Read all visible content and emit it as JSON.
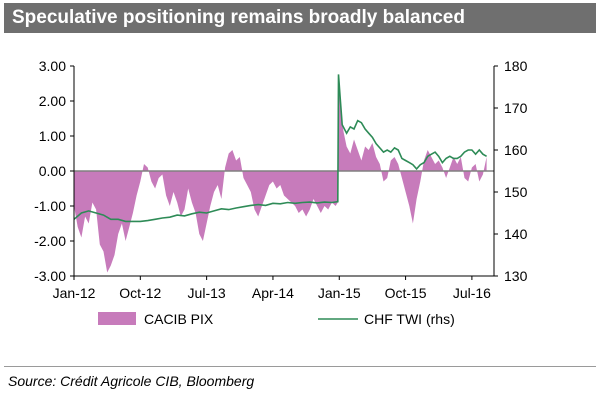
{
  "title": "Speculative positioning remains broadly balanced",
  "source": "Source: Crédit Agricole CIB, Bloomberg",
  "chart_data": {
    "type": "area",
    "title": "Speculative positioning remains broadly balanced",
    "xlabel": "",
    "ylabel": "",
    "y2label": "",
    "x_tick_labels": [
      "Jan-12",
      "Oct-12",
      "Jul-13",
      "Apr-14",
      "Jan-15",
      "Oct-15",
      "Jul-16"
    ],
    "x_tick_months": [
      0,
      9,
      18,
      27,
      36,
      45,
      54
    ],
    "x_range_months": [
      0,
      57
    ],
    "ylim_left": [
      -3.0,
      3.0
    ],
    "y_ticks_left": [
      -3.0,
      -2.0,
      -1.0,
      0.0,
      1.0,
      2.0,
      3.0
    ],
    "y_tick_labels_left": [
      "-3.00",
      "-2.00",
      "-1.00",
      "0.00",
      "1.00",
      "2.00",
      "3.00"
    ],
    "ylim_right": [
      130,
      180
    ],
    "y_ticks_right": [
      130,
      140,
      150,
      160,
      170,
      180
    ],
    "y_tick_labels_right": [
      "130",
      "140",
      "150",
      "160",
      "170",
      "180"
    ],
    "legend_position": "bottom",
    "grid": false,
    "colors": {
      "pix_fill": "#c77bbb",
      "twi_line": "#2e8b57",
      "zero_line": "#808080",
      "title_bg": "#6f6f6f"
    },
    "series": [
      {
        "name": "CACIB PIX",
        "axis": "left",
        "kind": "area",
        "points": [
          [
            0,
            -1.0
          ],
          [
            0.5,
            -1.6
          ],
          [
            1.0,
            -1.9
          ],
          [
            1.5,
            -1.3
          ],
          [
            2.0,
            -1.5
          ],
          [
            2.5,
            -0.9
          ],
          [
            3.0,
            -1.1
          ],
          [
            3.5,
            -2.1
          ],
          [
            4.0,
            -2.3
          ],
          [
            4.5,
            -2.9
          ],
          [
            5.0,
            -2.7
          ],
          [
            5.5,
            -2.4
          ],
          [
            6.0,
            -1.8
          ],
          [
            6.5,
            -1.5
          ],
          [
            7.0,
            -2.0
          ],
          [
            7.5,
            -1.6
          ],
          [
            8.0,
            -1.2
          ],
          [
            8.5,
            -0.7
          ],
          [
            9.0,
            -0.3
          ],
          [
            9.5,
            0.2
          ],
          [
            10.0,
            0.1
          ],
          [
            10.5,
            -0.3
          ],
          [
            11.0,
            -0.5
          ],
          [
            11.5,
            -0.2
          ],
          [
            12.0,
            -0.1
          ],
          [
            12.5,
            -0.7
          ],
          [
            13.0,
            -1.0
          ],
          [
            13.5,
            -0.6
          ],
          [
            14.0,
            -0.9
          ],
          [
            14.5,
            -1.3
          ],
          [
            15.0,
            -1.1
          ],
          [
            15.5,
            -0.5
          ],
          [
            16.0,
            -0.9
          ],
          [
            16.5,
            -1.2
          ],
          [
            17.0,
            -1.8
          ],
          [
            17.5,
            -2.0
          ],
          [
            18.0,
            -1.5
          ],
          [
            18.5,
            -1.0
          ],
          [
            19.0,
            -0.6
          ],
          [
            19.5,
            -0.4
          ],
          [
            20.0,
            -0.8
          ],
          [
            20.5,
            0.1
          ],
          [
            21.0,
            0.5
          ],
          [
            21.5,
            0.6
          ],
          [
            22.0,
            0.3
          ],
          [
            22.5,
            0.4
          ],
          [
            23.0,
            -0.2
          ],
          [
            23.5,
            -0.4
          ],
          [
            24.0,
            -0.6
          ],
          [
            24.5,
            -1.1
          ],
          [
            25.0,
            -1.3
          ],
          [
            25.5,
            -1.0
          ],
          [
            26.0,
            -0.7
          ],
          [
            26.5,
            -0.4
          ],
          [
            27.0,
            -0.3
          ],
          [
            27.5,
            -0.5
          ],
          [
            28.0,
            -0.4
          ],
          [
            28.5,
            -0.7
          ],
          [
            29.0,
            -0.8
          ],
          [
            29.5,
            -0.9
          ],
          [
            30.0,
            -1.0
          ],
          [
            30.5,
            -1.2
          ],
          [
            31.0,
            -1.1
          ],
          [
            31.5,
            -1.3
          ],
          [
            32.0,
            -1.1
          ],
          [
            32.5,
            -0.8
          ],
          [
            33.0,
            -1.0
          ],
          [
            33.5,
            -1.2
          ],
          [
            34.0,
            -1.0
          ],
          [
            34.5,
            -1.1
          ],
          [
            35.0,
            -0.9
          ],
          [
            35.5,
            -1.0
          ],
          [
            35.8,
            -0.9
          ],
          [
            35.9,
            2.7
          ],
          [
            36.0,
            2.5
          ],
          [
            36.3,
            1.5
          ],
          [
            36.6,
            1.1
          ],
          [
            37.0,
            0.7
          ],
          [
            37.5,
            0.5
          ],
          [
            38.0,
            0.9
          ],
          [
            38.5,
            0.6
          ],
          [
            39.0,
            0.3
          ],
          [
            39.5,
            0.7
          ],
          [
            40.0,
            0.6
          ],
          [
            40.5,
            0.8
          ],
          [
            41.0,
            0.4
          ],
          [
            41.5,
            0.2
          ],
          [
            42.0,
            -0.3
          ],
          [
            42.5,
            -0.2
          ],
          [
            43.0,
            0.3
          ],
          [
            43.5,
            0.4
          ],
          [
            44.0,
            0.2
          ],
          [
            44.5,
            -0.2
          ],
          [
            45.0,
            -0.6
          ],
          [
            45.5,
            -1.0
          ],
          [
            46.0,
            -1.5
          ],
          [
            46.5,
            -0.8
          ],
          [
            47.0,
            -0.3
          ],
          [
            47.5,
            0.3
          ],
          [
            48.0,
            0.6
          ],
          [
            48.5,
            0.4
          ],
          [
            49.0,
            0.2
          ],
          [
            49.5,
            0.3
          ],
          [
            50.0,
            0.1
          ],
          [
            50.5,
            -0.2
          ],
          [
            51.0,
            0.1
          ],
          [
            51.5,
            0.4
          ],
          [
            52.0,
            0.2
          ],
          [
            52.5,
            0.4
          ],
          [
            53.0,
            -0.2
          ],
          [
            53.5,
            -0.3
          ],
          [
            54.0,
            0.1
          ],
          [
            54.5,
            0.2
          ],
          [
            55.0,
            -0.3
          ],
          [
            55.5,
            -0.1
          ],
          [
            56.0,
            0.4
          ]
        ]
      },
      {
        "name": "CHF TWI (rhs)",
        "axis": "right",
        "kind": "line",
        "points": [
          [
            0,
            143.5
          ],
          [
            1.0,
            145.0
          ],
          [
            2.0,
            145.5
          ],
          [
            3.0,
            145.0
          ],
          [
            4.0,
            144.5
          ],
          [
            5.0,
            143.5
          ],
          [
            6.0,
            143.5
          ],
          [
            7.0,
            143.0
          ],
          [
            8.0,
            143.0
          ],
          [
            9.0,
            143.0
          ],
          [
            10.0,
            143.2
          ],
          [
            11.0,
            143.5
          ],
          [
            12.0,
            143.8
          ],
          [
            13.0,
            144.0
          ],
          [
            14.0,
            144.5
          ],
          [
            15.0,
            144.3
          ],
          [
            16.0,
            144.8
          ],
          [
            17.0,
            145.2
          ],
          [
            18.0,
            145.0
          ],
          [
            19.0,
            145.5
          ],
          [
            20.0,
            146.0
          ],
          [
            21.0,
            145.8
          ],
          [
            22.0,
            146.2
          ],
          [
            23.0,
            146.5
          ],
          [
            24.0,
            146.8
          ],
          [
            25.0,
            147.0
          ],
          [
            26.0,
            146.8
          ],
          [
            27.0,
            147.3
          ],
          [
            28.0,
            147.2
          ],
          [
            29.0,
            147.5
          ],
          [
            30.0,
            147.3
          ],
          [
            31.0,
            147.5
          ],
          [
            32.0,
            147.6
          ],
          [
            33.0,
            147.4
          ],
          [
            34.0,
            147.6
          ],
          [
            35.0,
            147.5
          ],
          [
            35.8,
            147.7
          ],
          [
            35.9,
            178.0
          ],
          [
            36.1,
            173.0
          ],
          [
            36.4,
            166.0
          ],
          [
            37.0,
            164.0
          ],
          [
            37.5,
            165.5
          ],
          [
            38.0,
            165.0
          ],
          [
            38.5,
            167.0
          ],
          [
            39.0,
            166.5
          ],
          [
            39.5,
            165.0
          ],
          [
            40.0,
            164.0
          ],
          [
            40.5,
            163.0
          ],
          [
            41.0,
            161.5
          ],
          [
            41.5,
            160.5
          ],
          [
            42.0,
            159.5
          ],
          [
            42.5,
            160.0
          ],
          [
            43.0,
            159.5
          ],
          [
            43.5,
            160.5
          ],
          [
            44.0,
            160.0
          ],
          [
            44.5,
            158.0
          ],
          [
            45.0,
            157.5
          ],
          [
            45.5,
            157.0
          ],
          [
            46.0,
            156.5
          ],
          [
            46.5,
            155.5
          ],
          [
            47.0,
            156.5
          ],
          [
            47.5,
            157.0
          ],
          [
            48.0,
            158.5
          ],
          [
            48.5,
            159.0
          ],
          [
            49.0,
            159.5
          ],
          [
            49.5,
            158.5
          ],
          [
            50.0,
            157.0
          ],
          [
            50.5,
            158.0
          ],
          [
            51.0,
            158.5
          ],
          [
            51.5,
            158.0
          ],
          [
            52.0,
            158.0
          ],
          [
            52.5,
            158.5
          ],
          [
            53.0,
            159.5
          ],
          [
            53.5,
            160.0
          ],
          [
            54.0,
            160.0
          ],
          [
            54.5,
            159.0
          ],
          [
            55.0,
            160.0
          ],
          [
            55.5,
            159.0
          ],
          [
            56.0,
            158.5
          ]
        ]
      }
    ]
  }
}
